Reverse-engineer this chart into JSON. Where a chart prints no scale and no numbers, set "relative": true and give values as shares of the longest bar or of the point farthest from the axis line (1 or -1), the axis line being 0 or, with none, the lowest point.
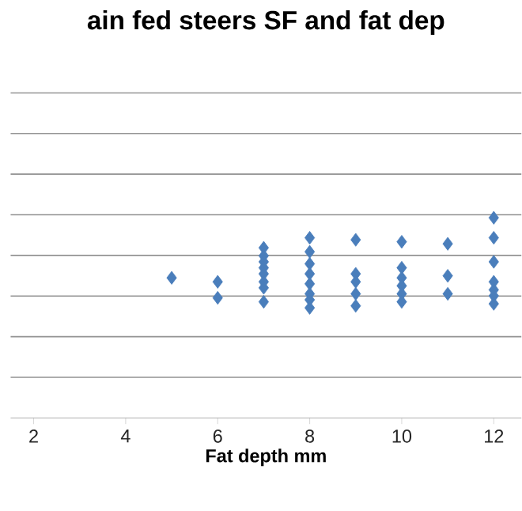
{
  "chart_data": {
    "type": "scatter",
    "title": "ain fed steers SF and fat dep",
    "xlabel": "Fat depth mm",
    "relative": true,
    "grid": "y",
    "marker": "diamond",
    "xlim": [
      1.5,
      12.6
    ],
    "xticks": [
      2,
      4,
      6,
      8,
      10,
      12
    ],
    "series": [
      {
        "color": "#4a7ebb",
        "x": [
          5,
          6,
          6,
          7,
          7,
          7,
          7,
          7,
          7,
          7,
          7,
          8,
          8,
          8,
          8,
          8,
          8,
          8,
          8,
          9,
          9,
          9,
          9,
          9,
          10,
          10,
          10,
          10,
          10,
          10,
          11,
          11,
          11,
          12,
          12,
          12,
          12,
          12,
          12,
          12
        ],
        "values": [
          0.7,
          0.68,
          0.6,
          0.85,
          0.81,
          0.78,
          0.75,
          0.72,
          0.68,
          0.65,
          0.58,
          0.9,
          0.83,
          0.77,
          0.72,
          0.67,
          0.62,
          0.59,
          0.55,
          0.89,
          0.72,
          0.68,
          0.62,
          0.56,
          0.88,
          0.75,
          0.7,
          0.66,
          0.62,
          0.58,
          0.87,
          0.71,
          0.62,
          1,
          0.9,
          0.78,
          0.68,
          0.64,
          0.61,
          0.57
        ]
      }
    ]
  }
}
